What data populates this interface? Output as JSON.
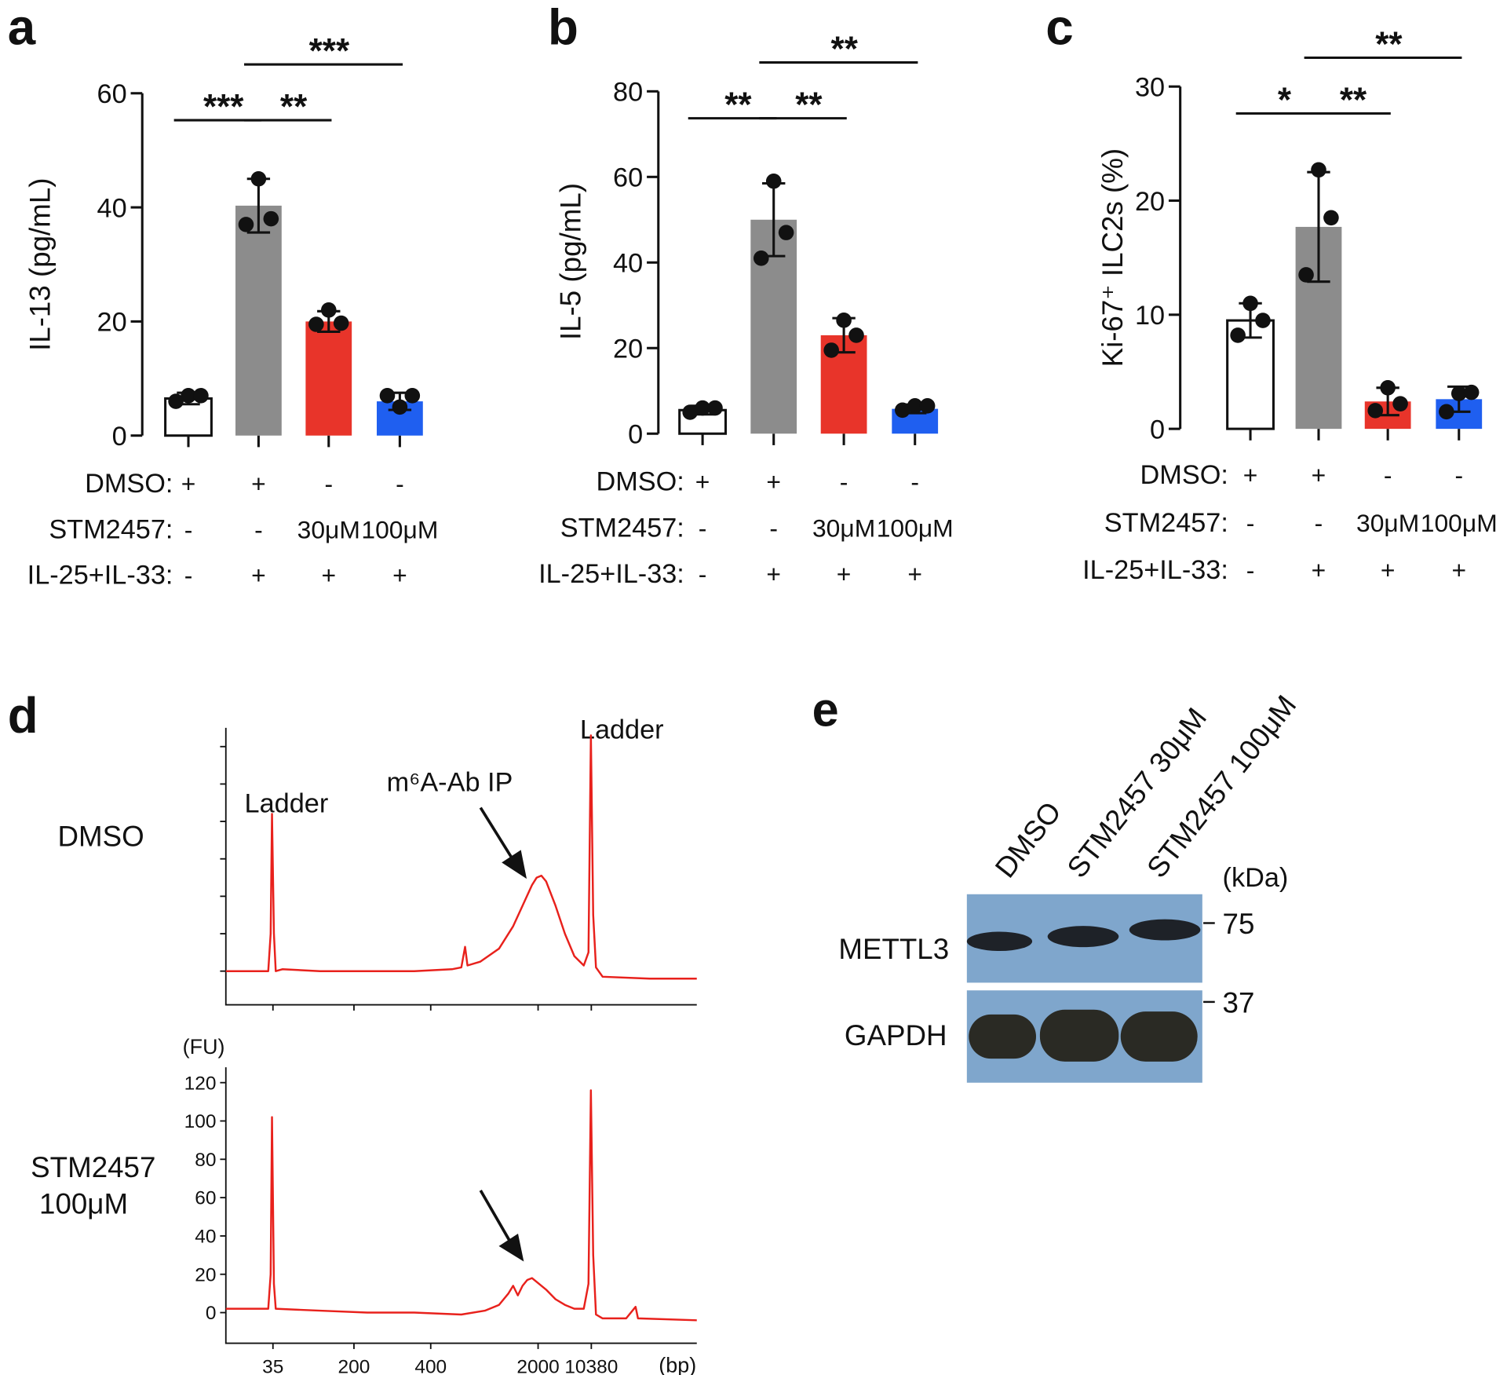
{
  "chart_data": [
    {
      "type": "bar",
      "panel": "a",
      "ylabel": "IL-13 (pg/mL)",
      "ylim": [
        0,
        60
      ],
      "yticks": [
        0,
        20,
        40,
        60
      ],
      "categories": [
        null,
        null,
        null,
        null
      ],
      "values": [
        6.5,
        40.3,
        20,
        6
      ],
      "errors": [
        1,
        4.7,
        1.8,
        1.5
      ],
      "points": [
        [
          6,
          7,
          7
        ],
        [
          37,
          45,
          38
        ],
        [
          19.5,
          22,
          19.7
        ],
        [
          7,
          5,
          7
        ]
      ],
      "colors": [
        "#ffffff",
        "#8c8c8c",
        "#e8342a",
        "#1f5ff0"
      ],
      "comparisons": [
        {
          "groups": [
            0,
            1
          ],
          "label": "***"
        },
        {
          "groups": [
            1,
            2
          ],
          "label": "**"
        },
        {
          "groups": [
            1,
            3
          ],
          "label": "***"
        }
      ],
      "conditions": [
        {
          "label": "DMSO:",
          "values": [
            "+",
            "+",
            "-",
            "-"
          ]
        },
        {
          "label": "STM2457:",
          "values": [
            "-",
            "-",
            "30μM",
            "100μM"
          ]
        },
        {
          "label": "IL-25+IL-33:",
          "values": [
            "-",
            "+",
            "+",
            "+"
          ]
        }
      ]
    },
    {
      "type": "bar",
      "panel": "b",
      "ylabel": "IL-5 (pg/mL)",
      "ylim": [
        0,
        80
      ],
      "yticks": [
        0,
        20,
        40,
        60,
        80
      ],
      "categories": [
        null,
        null,
        null,
        null
      ],
      "values": [
        5.5,
        50,
        23,
        5.8
      ],
      "errors": [
        1,
        8.5,
        4,
        1
      ],
      "points": [
        [
          5,
          6,
          6
        ],
        [
          41,
          59,
          47
        ],
        [
          19.5,
          26.5,
          23
        ],
        [
          5.5,
          6.5,
          6.5
        ]
      ],
      "colors": [
        "#ffffff",
        "#8c8c8c",
        "#e8342a",
        "#1f5ff0"
      ],
      "comparisons": [
        {
          "groups": [
            0,
            1
          ],
          "label": "**"
        },
        {
          "groups": [
            1,
            2
          ],
          "label": "**"
        },
        {
          "groups": [
            1,
            3
          ],
          "label": "**"
        }
      ],
      "conditions": [
        {
          "label": "DMSO:",
          "values": [
            "+",
            "+",
            "-",
            "-"
          ]
        },
        {
          "label": "STM2457:",
          "values": [
            "-",
            "-",
            "30μM",
            "100μM"
          ]
        },
        {
          "label": "IL-25+IL-33:",
          "values": [
            "-",
            "+",
            "+",
            "+"
          ]
        }
      ]
    },
    {
      "type": "bar",
      "panel": "c",
      "ylabel": "Ki-67⁺ ILC2s (%)",
      "ylim": [
        0,
        30
      ],
      "yticks": [
        0,
        10,
        20,
        30
      ],
      "categories": [
        null,
        null,
        null,
        null
      ],
      "values": [
        9.5,
        17.7,
        2.4,
        2.6
      ],
      "errors": [
        1.5,
        4.8,
        1.2,
        1.1
      ],
      "points": [
        [
          8.2,
          11,
          9.5
        ],
        [
          13.5,
          22.7,
          18.5
        ],
        [
          1.6,
          3.6,
          2.2
        ],
        [
          1.5,
          3.1,
          3.2
        ]
      ],
      "colors": [
        "#ffffff",
        "#8c8c8c",
        "#e8342a",
        "#1f5ff0"
      ],
      "comparisons": [
        {
          "groups": [
            0,
            1
          ],
          "label": "*"
        },
        {
          "groups": [
            1,
            2
          ],
          "label": "**"
        },
        {
          "groups": [
            1,
            3
          ],
          "label": "**"
        }
      ],
      "conditions": [
        {
          "label": "DMSO:",
          "values": [
            "+",
            "+",
            "-",
            "-"
          ]
        },
        {
          "label": "STM2457:",
          "values": [
            "-",
            "-",
            "30μM",
            "100μM"
          ]
        },
        {
          "label": "IL-25+IL-33:",
          "values": [
            "-",
            "+",
            "+",
            "+"
          ]
        }
      ]
    },
    {
      "type": "line",
      "panel": "d",
      "sample": [
        "DMSO"
      ],
      "annotations": [
        "Ladder",
        "m⁶A-Ab IP",
        "Ladder"
      ],
      "color": "#e8211c",
      "tick_labels": false,
      "xlim": [
        0,
        100
      ],
      "xticks": [
        10,
        27.2,
        43.5,
        66.3,
        77.6
      ],
      "ylim": [
        -18,
        130
      ],
      "yticks": [
        0,
        20,
        40,
        60,
        80,
        100,
        120
      ],
      "x": [
        0,
        9,
        9.5,
        9.8,
        10.2,
        10.6,
        12,
        20,
        30,
        40,
        48,
        50,
        50.8,
        51.3,
        54,
        58,
        61,
        63,
        65,
        66,
        67,
        68,
        70,
        72,
        74,
        76,
        77,
        77.5,
        78,
        78.6,
        80,
        90,
        100
      ],
      "values": [
        0,
        0,
        20,
        84,
        20,
        0,
        1,
        0,
        0,
        0,
        1,
        2,
        13,
        3,
        5,
        12,
        24,
        35,
        46,
        50,
        51,
        48,
        35,
        20,
        8,
        3,
        10,
        126,
        30,
        2,
        -3,
        -4,
        -4
      ]
    },
    {
      "type": "line",
      "sample": [
        "STM2457",
        "100μM"
      ],
      "yunit": "(FU)",
      "xunit": "(bp)",
      "color": "#e8211c",
      "tick_labels": true,
      "xlim": [
        0,
        100
      ],
      "xticks": [
        {
          "value": 10,
          "label": "35"
        },
        {
          "value": 27.2,
          "label": "200"
        },
        {
          "value": 43.5,
          "label": "400"
        },
        {
          "value": 66.3,
          "label": "2000"
        },
        {
          "value": 77.6,
          "label": "10380"
        }
      ],
      "ylim": [
        -16,
        128
      ],
      "yticks": [
        0,
        20,
        40,
        60,
        80,
        100,
        120
      ],
      "x": [
        0,
        9,
        9.5,
        9.8,
        10.2,
        10.6,
        20,
        30,
        40,
        50,
        55,
        58,
        60,
        61,
        62,
        63,
        64,
        65,
        66,
        68,
        70,
        72,
        74,
        76,
        77,
        77.5,
        78,
        78.6,
        80,
        85,
        87,
        87.5,
        100
      ],
      "values": [
        2,
        2,
        20,
        102,
        15,
        2,
        1,
        0,
        0,
        -1,
        1,
        4,
        10,
        14,
        9,
        14,
        17,
        18,
        16,
        12,
        7,
        4,
        2,
        2,
        15,
        116,
        30,
        -1,
        -3,
        -3,
        3,
        -3,
        -4
      ]
    }
  ],
  "blot": {
    "panel": "e",
    "lanes": [
      "DMSO",
      "STM2457 30μM",
      "STM2457 100μM"
    ],
    "unit": "(kDa)",
    "rows": [
      {
        "label": "METTL3",
        "marker": "75"
      },
      {
        "label": "GAPDH",
        "marker": "37"
      }
    ]
  }
}
